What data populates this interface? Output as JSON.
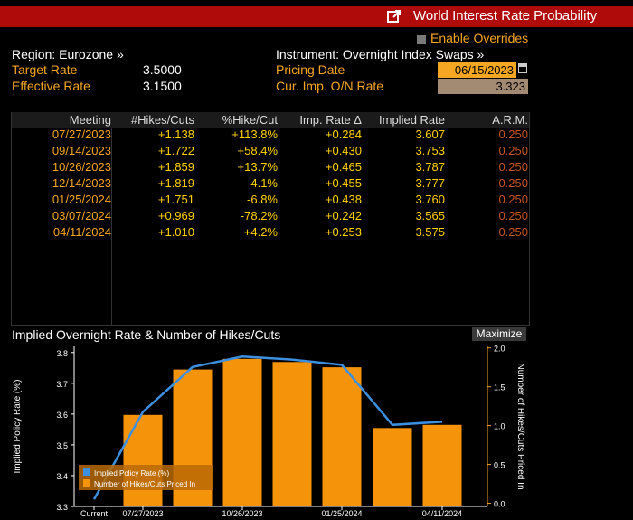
{
  "window": {
    "title": "World Interest Rate Probability",
    "icon": "external-link-icon"
  },
  "region": {
    "label": "Region: Eurozone »"
  },
  "instrument": {
    "label": "Instrument: Overnight Index Swaps »"
  },
  "overrides": {
    "label": "Enable Overrides"
  },
  "target_rate": {
    "label": "Target Rate",
    "value": "3.5000"
  },
  "effective_rate": {
    "label": "Effective Rate",
    "value": "3.1500"
  },
  "pricing_date": {
    "label": "Pricing Date",
    "value": "06/15/2023"
  },
  "cur_imp": {
    "label": "Cur. Imp. O/N Rate",
    "value": "3.323"
  },
  "table": {
    "headers": [
      "Meeting",
      "#Hikes/Cuts",
      "%Hike/Cut",
      "Imp. Rate Δ",
      "Implied Rate",
      "A.R.M."
    ],
    "rows": [
      [
        "07/27/2023",
        "+1.138",
        "+113.8%",
        "+0.284",
        "3.607",
        "0.250"
      ],
      [
        "09/14/2023",
        "+1.722",
        "+58.4%",
        "+0.430",
        "3.753",
        "0.250"
      ],
      [
        "10/26/2023",
        "+1.859",
        "+13.7%",
        "+0.465",
        "3.787",
        "0.250"
      ],
      [
        "12/14/2023",
        "+1.819",
        "-4.1%",
        "+0.455",
        "3.777",
        "0.250"
      ],
      [
        "01/25/2024",
        "+1.751",
        "-6.8%",
        "+0.438",
        "3.760",
        "0.250"
      ],
      [
        "03/07/2024",
        "+0.969",
        "-78.2%",
        "+0.242",
        "3.565",
        "0.250"
      ],
      [
        "04/11/2024",
        "+1.010",
        "+4.2%",
        "+0.253",
        "3.575",
        "0.250"
      ]
    ]
  },
  "chart_header": {
    "title": "Implied Overnight Rate & Number of Hikes/Cuts",
    "maximize_label": "Maximize"
  },
  "chart_data": {
    "type": "bar",
    "xlabel": "",
    "ylabel_left": "Implied Policy Rate (%)",
    "ylabel_right": "Number of Hikes/Cuts Priced In",
    "x_tick_labels": [
      "Current",
      "07/27/2023",
      "10/26/2023",
      "01/25/2024",
      "04/11/2024"
    ],
    "y_left_ticks": [
      "3.3",
      "3.4",
      "3.5",
      "3.6",
      "3.7",
      "3.8"
    ],
    "y_right_ticks": [
      "0.0",
      "0.5",
      "1.0",
      "1.5",
      "2.0"
    ],
    "ylim_left": [
      3.3,
      3.82
    ],
    "ylim_right": [
      -0.04,
      2.02
    ],
    "categories": [
      "Current",
      "07/27/2023",
      "09/14/2023",
      "10/26/2023",
      "12/14/2023",
      "01/25/2024",
      "03/07/2024",
      "04/11/2024"
    ],
    "series": [
      {
        "name": "Implied Policy Rate (%)",
        "type": "line",
        "axis": "left",
        "color": "#3d8fe0",
        "values": [
          3.323,
          3.607,
          3.753,
          3.787,
          3.777,
          3.76,
          3.565,
          3.575
        ]
      },
      {
        "name": "Number of Hikes/Cuts Priced In",
        "type": "bar",
        "axis": "right",
        "color": "#f5930a",
        "values": [
          0,
          1.138,
          1.722,
          1.859,
          1.819,
          1.751,
          0.969,
          1.01
        ]
      }
    ],
    "legend_position": "bottom-left",
    "grid": false
  },
  "colors": {
    "title_bar": "#b00b0b",
    "label_orange": "#f5a623",
    "value_yellow": "#ffd200",
    "arm_orange": "#c1541c"
  }
}
